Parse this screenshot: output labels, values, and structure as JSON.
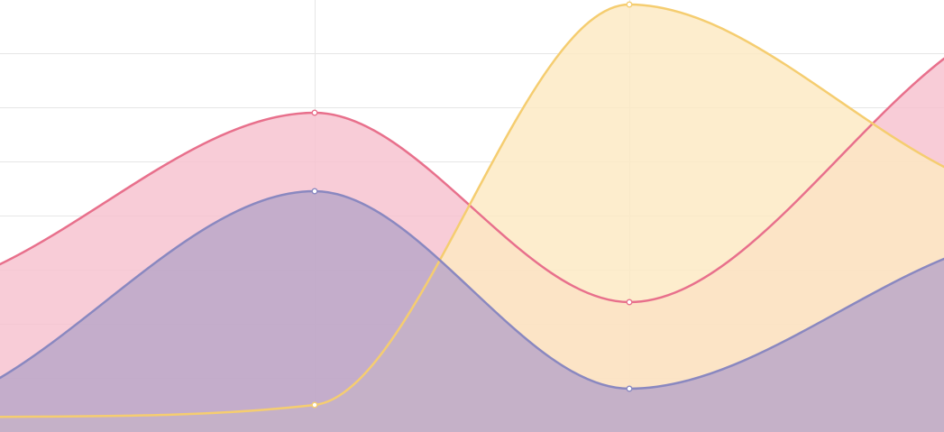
{
  "chart_data": {
    "type": "area",
    "x": [
      0,
      1,
      2,
      3
    ],
    "xlim": [
      0,
      3
    ],
    "ylim": [
      0,
      79
    ],
    "grid": {
      "horizontal": true,
      "vertical": true,
      "y_ticks": [
        0,
        10,
        20,
        30,
        40,
        50,
        60,
        70,
        80
      ],
      "x_ticks": [
        0,
        1,
        2,
        3
      ]
    },
    "legend": "none",
    "series": [
      {
        "values": [
          31,
          59,
          24,
          69
        ],
        "line_color": "#e8708c",
        "fill_color": "#f7c1ce"
      },
      {
        "values": [
          2.8,
          5,
          79,
          49
        ],
        "line_color": "#f5cd70",
        "fill_color": "#fce9c2"
      },
      {
        "values": [
          10,
          44.5,
          8,
          32
        ],
        "line_color": "#8a88c0",
        "fill_color": "#b8a6c8"
      }
    ]
  }
}
